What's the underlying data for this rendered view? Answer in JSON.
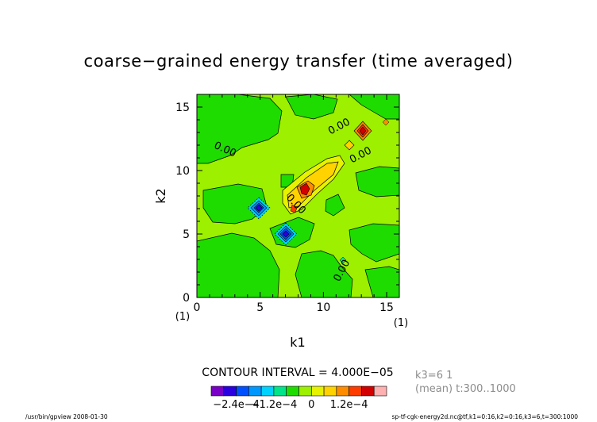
{
  "chart_data": {
    "type": "heatmap",
    "title": "coarse−grained energy transfer (time averaged)",
    "xlabel": "k1",
    "ylabel": "k2",
    "xlim": [
      0,
      16
    ],
    "ylim": [
      0,
      16
    ],
    "xticks": [
      "0",
      "5",
      "10",
      "15"
    ],
    "yticks": [
      "0",
      "5",
      "10",
      "15"
    ],
    "x_unit_label": "(1)",
    "y_unit_label": "(1)",
    "contour_labels": [
      "0.00",
      "0.00",
      "0.00",
      "0.00"
    ],
    "contour_interval": "CONTOUR INTERVAL = 4.000E−05",
    "colorbar": {
      "colors": [
        "#7a00c8",
        "#2a00e0",
        "#0050ff",
        "#0098ff",
        "#00d2ff",
        "#00e58a",
        "#1edc00",
        "#9cf000",
        "#e6f200",
        "#ffd200",
        "#ff8c00",
        "#ff3c00",
        "#d20000",
        "#ffb0b0"
      ],
      "tick_labels": [
        "−2.4e−4",
        "−1.2e−4",
        "0",
        "1.2e−4"
      ]
    },
    "side_info": {
      "line1": "k3=6   1",
      "line2": "(mean) t:300..1000"
    }
  },
  "footer": {
    "left": "/usr/bin/gpview   2008-01-30",
    "right": "sp-tf-cgk-energy2d.nc@tf,k1=0:16,k2=0:16,k3=6,t=300:1000"
  }
}
